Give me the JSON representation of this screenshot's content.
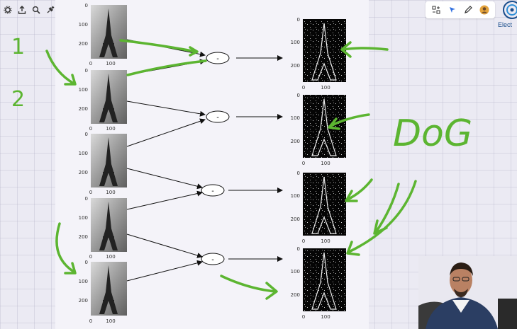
{
  "toolbar_left": {
    "icons": [
      "gear-icon",
      "upload-icon",
      "search-icon",
      "plug-icon"
    ]
  },
  "toolbar_right": {
    "icons": [
      "grid-plus-icon",
      "pointer-icon",
      "pen-icon",
      "avatar-icon"
    ]
  },
  "logo": {
    "text": "Elect"
  },
  "left_images": {
    "y_ticks": [
      "0",
      "100",
      "200"
    ],
    "x_ticks": [
      "0",
      "100"
    ]
  },
  "right_images": {
    "y_ticks": [
      "0",
      "100",
      "200"
    ],
    "x_ticks": [
      "0",
      "100"
    ]
  },
  "operators": [
    "-",
    "-",
    "-",
    "-"
  ],
  "annotations": {
    "num_1": "1",
    "num_2": "2",
    "dog_label": "DoG"
  },
  "colors": {
    "annotation_green": "#5cb531",
    "slide_bg": "#f4f3f9",
    "canvas_bg": "#ebeaf3"
  }
}
